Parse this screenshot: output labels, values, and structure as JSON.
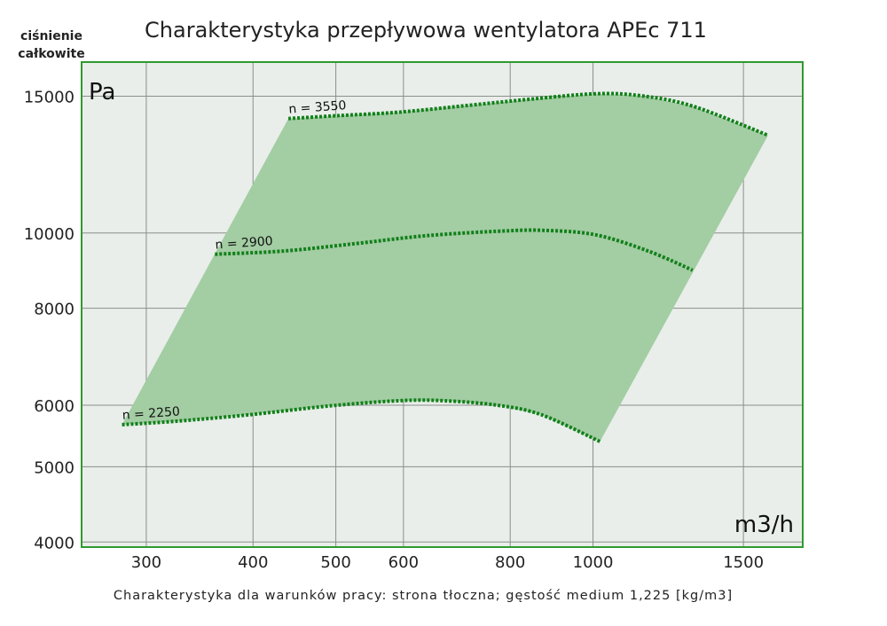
{
  "chart_data": {
    "type": "line",
    "title": "Charakterystyka przepływowa wentylatora APEc 711",
    "ylabel": [
      "ciśnienie",
      "całkowite"
    ],
    "y_unit": "Pa",
    "x_unit": "m3/h",
    "footer": "Charakterystyka dla warunków pracy: strona tłoczna; gęstość medium 1,225 [kg/m3]",
    "xscale": "log",
    "yscale": "log",
    "xlim": [
      252,
      1760
    ],
    "ylim": [
      3940,
      16600
    ],
    "xticks": [
      300,
      400,
      500,
      600,
      800,
      1000,
      1500
    ],
    "xtick_labels": [
      "300",
      "400",
      "500",
      "600",
      "800",
      "1000",
      "1500"
    ],
    "yticks": [
      4000,
      5000,
      6000,
      8000,
      10000,
      15000
    ],
    "ytick_labels": [
      "4000",
      "5000",
      "6000",
      "8000",
      "10000",
      "15000"
    ],
    "grid": true,
    "colors": {
      "fill": "#a3cda3",
      "line": "#11801a",
      "border": "#2f9a2f",
      "bg": "#e9eeea"
    },
    "series": [
      {
        "name": "n = 3550",
        "x": [
          440,
          502,
          593,
          719,
          850,
          1005,
          1133,
          1308,
          1603
        ],
        "y": [
          14040,
          14160,
          14310,
          14610,
          14880,
          15110,
          15030,
          14570,
          13360
        ]
      },
      {
        "name": "n = 2900",
        "x": [
          361,
          435,
          527,
          638,
          772,
          871,
          1005,
          1160,
          1308
        ],
        "y": [
          9390,
          9480,
          9690,
          9920,
          10050,
          10080,
          9950,
          9480,
          8955
        ]
      },
      {
        "name": "n = 2250",
        "x": [
          281,
          326,
          395,
          490,
          593,
          669,
          772,
          871,
          1019
        ],
        "y": [
          5664,
          5724,
          5831,
          5986,
          6081,
          6081,
          6002,
          5831,
          5388
        ]
      }
    ]
  }
}
